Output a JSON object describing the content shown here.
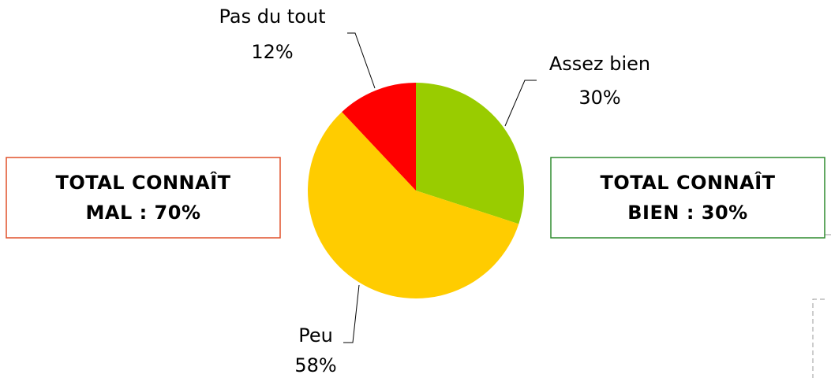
{
  "chart_data": {
    "type": "pie",
    "categories": [
      "Assez bien",
      "Peu",
      "Pas du tout"
    ],
    "values": [
      30,
      58,
      12
    ],
    "value_labels": [
      "30%",
      "58%",
      "12%"
    ],
    "colors": [
      "#99cc00",
      "#ffcc00",
      "#ff0000"
    ],
    "annotations": [
      {
        "lines": [
          "TOTAL CONNAÎT",
          "MAL : 70%"
        ],
        "color": "#e0502a"
      },
      {
        "lines": [
          "TOTAL CONNAÎT",
          "BIEN : 30%"
        ],
        "color": "#2e8b2e"
      }
    ]
  }
}
